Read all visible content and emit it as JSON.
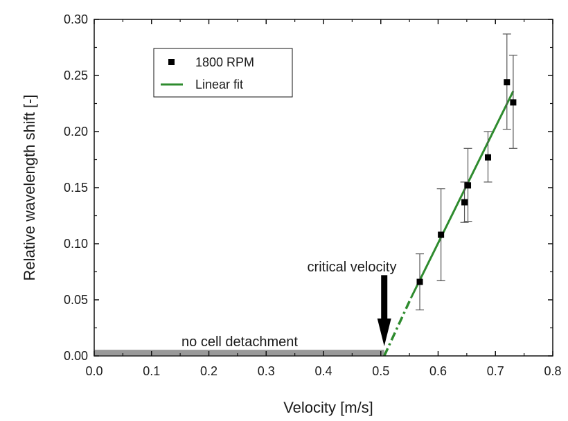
{
  "chart_data": {
    "type": "scatter",
    "title": "",
    "xlabel": "Velocity [m/s]",
    "ylabel": "Relative wavelength shift [-]",
    "xlim": [
      0.0,
      0.8
    ],
    "ylim": [
      0.0,
      0.3
    ],
    "x_ticks": [
      "0.0",
      "0.1",
      "0.2",
      "0.3",
      "0.4",
      "0.5",
      "0.6",
      "0.7",
      "0.8"
    ],
    "y_ticks": [
      "0.00",
      "0.05",
      "0.10",
      "0.15",
      "0.20",
      "0.25",
      "0.30"
    ],
    "grid": false,
    "legend_position": "top-left",
    "series": [
      {
        "name": "1800 RPM",
        "kind": "points-with-error-bars",
        "color": "#000000",
        "points": [
          {
            "x": 0.568,
            "y": 0.066,
            "err_low": 0.041,
            "err_high": 0.091
          },
          {
            "x": 0.605,
            "y": 0.108,
            "err_low": 0.067,
            "err_high": 0.149
          },
          {
            "x": 0.646,
            "y": 0.137,
            "err_low": 0.119,
            "err_high": 0.155
          },
          {
            "x": 0.652,
            "y": 0.152,
            "err_low": 0.12,
            "err_high": 0.185
          },
          {
            "x": 0.687,
            "y": 0.177,
            "err_low": 0.155,
            "err_high": 0.2
          },
          {
            "x": 0.72,
            "y": 0.244,
            "err_low": 0.202,
            "err_high": 0.287
          },
          {
            "x": 0.731,
            "y": 0.226,
            "err_low": 0.185,
            "err_high": 0.268
          }
        ]
      },
      {
        "name": "Linear fit",
        "kind": "line",
        "color": "#2e8b2e",
        "solid": {
          "x": [
            0.553,
            0.731
          ],
          "y": [
            0.052,
            0.236
          ]
        },
        "extrapolated_dashed": {
          "x": [
            0.506,
            0.553
          ],
          "y": [
            0.0,
            0.052
          ]
        }
      }
    ],
    "no_detachment_band": {
      "x": [
        0.0,
        0.506
      ],
      "y": 0.003,
      "color": "#999999"
    },
    "annotations": {
      "critical_velocity": {
        "text": "critical velocity",
        "x": 0.506,
        "arrow_from_y": 0.072
      },
      "no_detachment": {
        "text": "no cell detachment"
      }
    }
  }
}
